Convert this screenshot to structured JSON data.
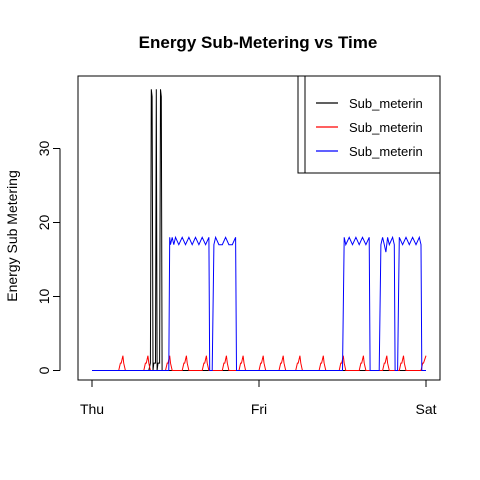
{
  "chart_data": {
    "type": "line",
    "title": "Energy Sub-Metering vs Time",
    "xlabel": "",
    "ylabel": "Energy Sub Metering",
    "x_ticks": [
      "Thu",
      "Fri",
      "Sat"
    ],
    "xlim": [
      0,
      2
    ],
    "y_ticks": [
      0,
      10,
      20,
      30
    ],
    "ylim": [
      -1.5,
      40
    ],
    "legend": {
      "position": "top-right",
      "truncated": true
    },
    "series": [
      {
        "name": "Sub_meterin",
        "color": "#000000",
        "x": [
          0,
          0.34,
          0.35,
          0.355,
          0.36,
          0.365,
          0.37,
          0.38,
          0.385,
          0.39,
          0.395,
          0.405,
          0.41,
          0.415,
          0.42,
          2
        ],
        "y": [
          0,
          0,
          1,
          38,
          37,
          0,
          1,
          1,
          38,
          0,
          1,
          1,
          38,
          37,
          0,
          0
        ]
      },
      {
        "name": "Sub_meterin",
        "color": "#ff0000",
        "x": [
          0,
          0.16,
          0.17,
          0.175,
          0.185,
          0.19,
          0.2,
          0.31,
          0.32,
          0.325,
          0.335,
          0.34,
          0.35,
          0.44,
          0.45,
          0.455,
          0.465,
          0.47,
          0.48,
          0.54,
          0.55,
          0.555,
          0.565,
          0.57,
          0.58,
          0.66,
          0.67,
          0.675,
          0.685,
          0.69,
          0.7,
          0.78,
          0.79,
          0.795,
          0.805,
          0.81,
          0.82,
          0.88,
          0.89,
          0.895,
          0.905,
          0.91,
          0.92,
          1.0,
          1.01,
          1.015,
          1.025,
          1.03,
          1.04,
          1.12,
          1.13,
          1.135,
          1.145,
          1.15,
          1.16,
          1.22,
          1.23,
          1.235,
          1.245,
          1.25,
          1.26,
          1.36,
          1.37,
          1.375,
          1.385,
          1.39,
          1.4,
          1.48,
          1.49,
          1.495,
          1.505,
          1.51,
          1.52,
          1.6,
          1.61,
          1.615,
          1.625,
          1.63,
          1.64,
          1.74,
          1.75,
          1.755,
          1.765,
          1.77,
          1.78,
          1.84,
          1.85,
          1.855,
          1.865,
          1.87,
          1.88,
          1.97,
          1.98,
          1.985,
          2
        ],
        "y": [
          0,
          0,
          1,
          1,
          2,
          1,
          0,
          0,
          1,
          1,
          2,
          1,
          0,
          0,
          1,
          1,
          2,
          1,
          0,
          0,
          1,
          1,
          2,
          1,
          0,
          0,
          1,
          1,
          2,
          1,
          0,
          0,
          1,
          1,
          2,
          1,
          0,
          0,
          1,
          1,
          2,
          1,
          0,
          0,
          1,
          1,
          2,
          1,
          0,
          0,
          1,
          1,
          2,
          1,
          0,
          0,
          1,
          1,
          2,
          1,
          0,
          0,
          1,
          1,
          2,
          1,
          0,
          0,
          1,
          1,
          2,
          1,
          0,
          0,
          1,
          1,
          2,
          1,
          0,
          0,
          1,
          1,
          2,
          1,
          0,
          0,
          1,
          1,
          2,
          1,
          0,
          0,
          1,
          1,
          2
        ]
      },
      {
        "name": "Sub_meterin",
        "color": "#0000ff",
        "x": [
          0,
          0.46,
          0.465,
          0.47,
          0.48,
          0.49,
          0.5,
          0.52,
          0.54,
          0.56,
          0.58,
          0.6,
          0.62,
          0.64,
          0.66,
          0.68,
          0.7,
          0.705,
          0.71,
          0.72,
          0.73,
          0.74,
          0.76,
          0.78,
          0.8,
          0.82,
          0.84,
          0.86,
          0.865,
          1.5,
          1.51,
          1.52,
          1.54,
          1.56,
          1.58,
          1.6,
          1.62,
          1.64,
          1.66,
          1.665,
          1.72,
          1.73,
          1.74,
          1.75,
          1.76,
          1.77,
          1.78,
          1.8,
          1.81,
          1.815,
          1.83,
          1.84,
          1.86,
          1.88,
          1.9,
          1.92,
          1.94,
          1.96,
          1.97,
          1.975,
          2
        ],
        "y": [
          0,
          0,
          18,
          17,
          18,
          17,
          18,
          17,
          18,
          17,
          18,
          17,
          18,
          17,
          18,
          17,
          18,
          0,
          0,
          0,
          17,
          18,
          17,
          17,
          18,
          17,
          17,
          18,
          0,
          0,
          18,
          17,
          18,
          17,
          18,
          17,
          18,
          17,
          18,
          0,
          0,
          17,
          18,
          17,
          16,
          18,
          17,
          18,
          17,
          0,
          0,
          18,
          17,
          18,
          17,
          18,
          17,
          18,
          17,
          0,
          0
        ]
      }
    ]
  }
}
